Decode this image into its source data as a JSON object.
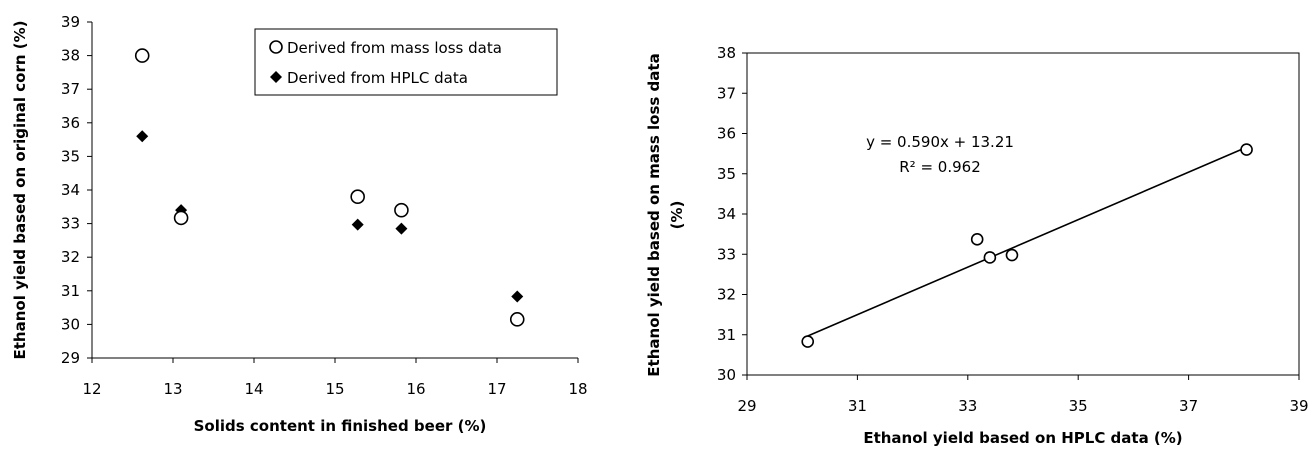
{
  "chart_data": [
    {
      "type": "scatter",
      "title": "",
      "xlabel": "Solids content in finished beer (%)",
      "ylabel": "Ethanol yield based on original corn (%)",
      "xlim": [
        12,
        18
      ],
      "ylim": [
        29,
        39
      ],
      "xticks": [
        "12",
        "13",
        "14",
        "15",
        "16",
        "17",
        "18"
      ],
      "yticks": [
        "29",
        "30",
        "31",
        "32",
        "33",
        "34",
        "35",
        "36",
        "37",
        "38",
        "39"
      ],
      "legend_position": "top-right",
      "series": [
        {
          "name": "Derived from mass loss data",
          "marker": "open-circle",
          "x": [
            12.62,
            13.1,
            15.28,
            15.82,
            17.25
          ],
          "y": [
            38.0,
            33.17,
            33.8,
            33.4,
            30.15
          ]
        },
        {
          "name": "Derived from HPLC data",
          "marker": "filled-diamond",
          "x": [
            12.62,
            13.1,
            15.28,
            15.82,
            17.25
          ],
          "y": [
            35.6,
            33.4,
            32.97,
            32.85,
            30.83
          ]
        }
      ]
    },
    {
      "type": "scatter",
      "title": "",
      "xlabel": "Ethanol yield based on HPLC data (%)",
      "ylabel_line1": "Ethanol yield based on mass loss data",
      "ylabel_line2": "(%)",
      "xlim": [
        29,
        39
      ],
      "ylim": [
        30,
        38
      ],
      "xticks": [
        "29",
        "31",
        "33",
        "35",
        "37",
        "39"
      ],
      "yticks": [
        "30",
        "31",
        "32",
        "33",
        "34",
        "35",
        "36",
        "37",
        "38"
      ],
      "grid": false,
      "series": [
        {
          "marker": "open-circle",
          "x": [
            30.1,
            33.17,
            33.4,
            33.8,
            38.05
          ],
          "y": [
            30.83,
            33.37,
            32.92,
            32.98,
            35.6
          ]
        }
      ],
      "trendline": {
        "slope": 0.59,
        "intercept": 13.21,
        "x_range": [
          30.1,
          38.05
        ],
        "equation": "y = 0.590x + 13.21",
        "r_squared": "R² = 0.962"
      }
    }
  ]
}
